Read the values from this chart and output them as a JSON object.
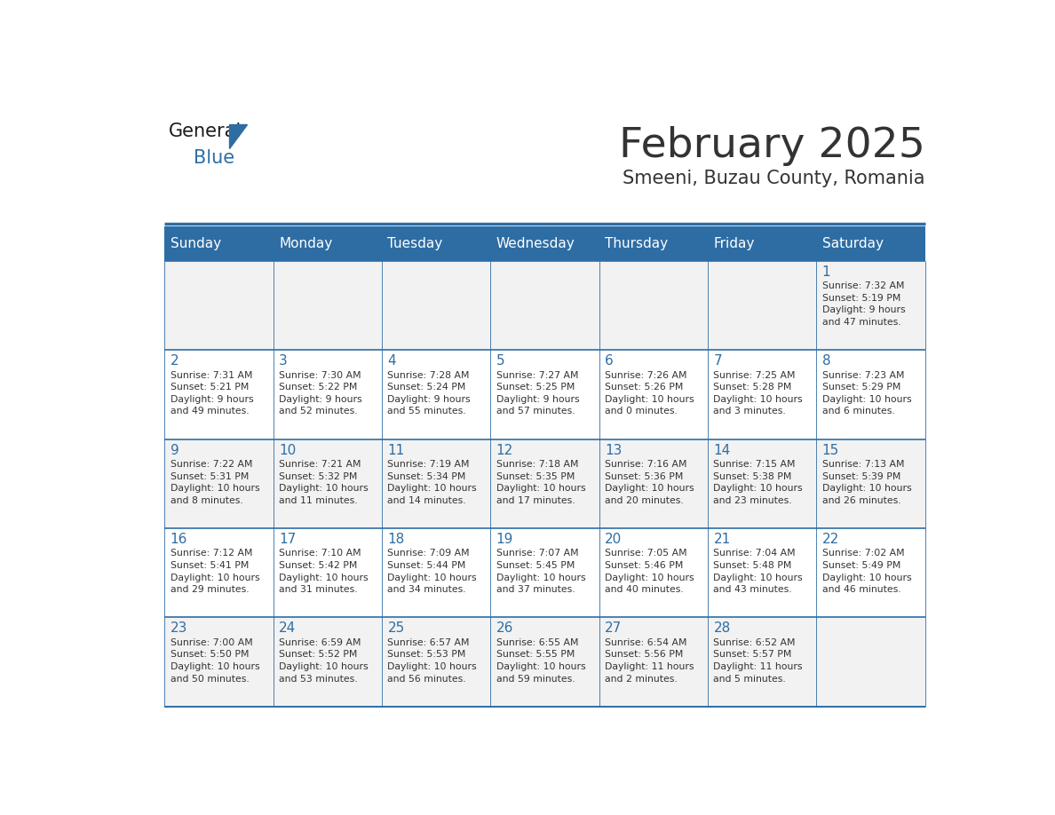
{
  "title": "February 2025",
  "subtitle": "Smeeni, Buzau County, Romania",
  "header_color": "#2E6DA4",
  "header_text_color": "#FFFFFF",
  "cell_bg_color": "#F2F2F2",
  "cell_alt_bg_color": "#FFFFFF",
  "day_number_color": "#2E6DA4",
  "text_color": "#333333",
  "days_of_week": [
    "Sunday",
    "Monday",
    "Tuesday",
    "Wednesday",
    "Thursday",
    "Friday",
    "Saturday"
  ],
  "logo_general_color": "#1a1a1a",
  "logo_blue_color": "#2E6DA4",
  "calendar_data": [
    [
      null,
      null,
      null,
      null,
      null,
      null,
      {
        "day": 1,
        "sunrise": "7:32 AM",
        "sunset": "5:19 PM",
        "daylight": "9 hours\nand 47 minutes."
      }
    ],
    [
      {
        "day": 2,
        "sunrise": "7:31 AM",
        "sunset": "5:21 PM",
        "daylight": "9 hours\nand 49 minutes."
      },
      {
        "day": 3,
        "sunrise": "7:30 AM",
        "sunset": "5:22 PM",
        "daylight": "9 hours\nand 52 minutes."
      },
      {
        "day": 4,
        "sunrise": "7:28 AM",
        "sunset": "5:24 PM",
        "daylight": "9 hours\nand 55 minutes."
      },
      {
        "day": 5,
        "sunrise": "7:27 AM",
        "sunset": "5:25 PM",
        "daylight": "9 hours\nand 57 minutes."
      },
      {
        "day": 6,
        "sunrise": "7:26 AM",
        "sunset": "5:26 PM",
        "daylight": "10 hours\nand 0 minutes."
      },
      {
        "day": 7,
        "sunrise": "7:25 AM",
        "sunset": "5:28 PM",
        "daylight": "10 hours\nand 3 minutes."
      },
      {
        "day": 8,
        "sunrise": "7:23 AM",
        "sunset": "5:29 PM",
        "daylight": "10 hours\nand 6 minutes."
      }
    ],
    [
      {
        "day": 9,
        "sunrise": "7:22 AM",
        "sunset": "5:31 PM",
        "daylight": "10 hours\nand 8 minutes."
      },
      {
        "day": 10,
        "sunrise": "7:21 AM",
        "sunset": "5:32 PM",
        "daylight": "10 hours\nand 11 minutes."
      },
      {
        "day": 11,
        "sunrise": "7:19 AM",
        "sunset": "5:34 PM",
        "daylight": "10 hours\nand 14 minutes."
      },
      {
        "day": 12,
        "sunrise": "7:18 AM",
        "sunset": "5:35 PM",
        "daylight": "10 hours\nand 17 minutes."
      },
      {
        "day": 13,
        "sunrise": "7:16 AM",
        "sunset": "5:36 PM",
        "daylight": "10 hours\nand 20 minutes."
      },
      {
        "day": 14,
        "sunrise": "7:15 AM",
        "sunset": "5:38 PM",
        "daylight": "10 hours\nand 23 minutes."
      },
      {
        "day": 15,
        "sunrise": "7:13 AM",
        "sunset": "5:39 PM",
        "daylight": "10 hours\nand 26 minutes."
      }
    ],
    [
      {
        "day": 16,
        "sunrise": "7:12 AM",
        "sunset": "5:41 PM",
        "daylight": "10 hours\nand 29 minutes."
      },
      {
        "day": 17,
        "sunrise": "7:10 AM",
        "sunset": "5:42 PM",
        "daylight": "10 hours\nand 31 minutes."
      },
      {
        "day": 18,
        "sunrise": "7:09 AM",
        "sunset": "5:44 PM",
        "daylight": "10 hours\nand 34 minutes."
      },
      {
        "day": 19,
        "sunrise": "7:07 AM",
        "sunset": "5:45 PM",
        "daylight": "10 hours\nand 37 minutes."
      },
      {
        "day": 20,
        "sunrise": "7:05 AM",
        "sunset": "5:46 PM",
        "daylight": "10 hours\nand 40 minutes."
      },
      {
        "day": 21,
        "sunrise": "7:04 AM",
        "sunset": "5:48 PM",
        "daylight": "10 hours\nand 43 minutes."
      },
      {
        "day": 22,
        "sunrise": "7:02 AM",
        "sunset": "5:49 PM",
        "daylight": "10 hours\nand 46 minutes."
      }
    ],
    [
      {
        "day": 23,
        "sunrise": "7:00 AM",
        "sunset": "5:50 PM",
        "daylight": "10 hours\nand 50 minutes."
      },
      {
        "day": 24,
        "sunrise": "6:59 AM",
        "sunset": "5:52 PM",
        "daylight": "10 hours\nand 53 minutes."
      },
      {
        "day": 25,
        "sunrise": "6:57 AM",
        "sunset": "5:53 PM",
        "daylight": "10 hours\nand 56 minutes."
      },
      {
        "day": 26,
        "sunrise": "6:55 AM",
        "sunset": "5:55 PM",
        "daylight": "10 hours\nand 59 minutes."
      },
      {
        "day": 27,
        "sunrise": "6:54 AM",
        "sunset": "5:56 PM",
        "daylight": "11 hours\nand 2 minutes."
      },
      {
        "day": 28,
        "sunrise": "6:52 AM",
        "sunset": "5:57 PM",
        "daylight": "11 hours\nand 5 minutes."
      },
      null
    ]
  ]
}
